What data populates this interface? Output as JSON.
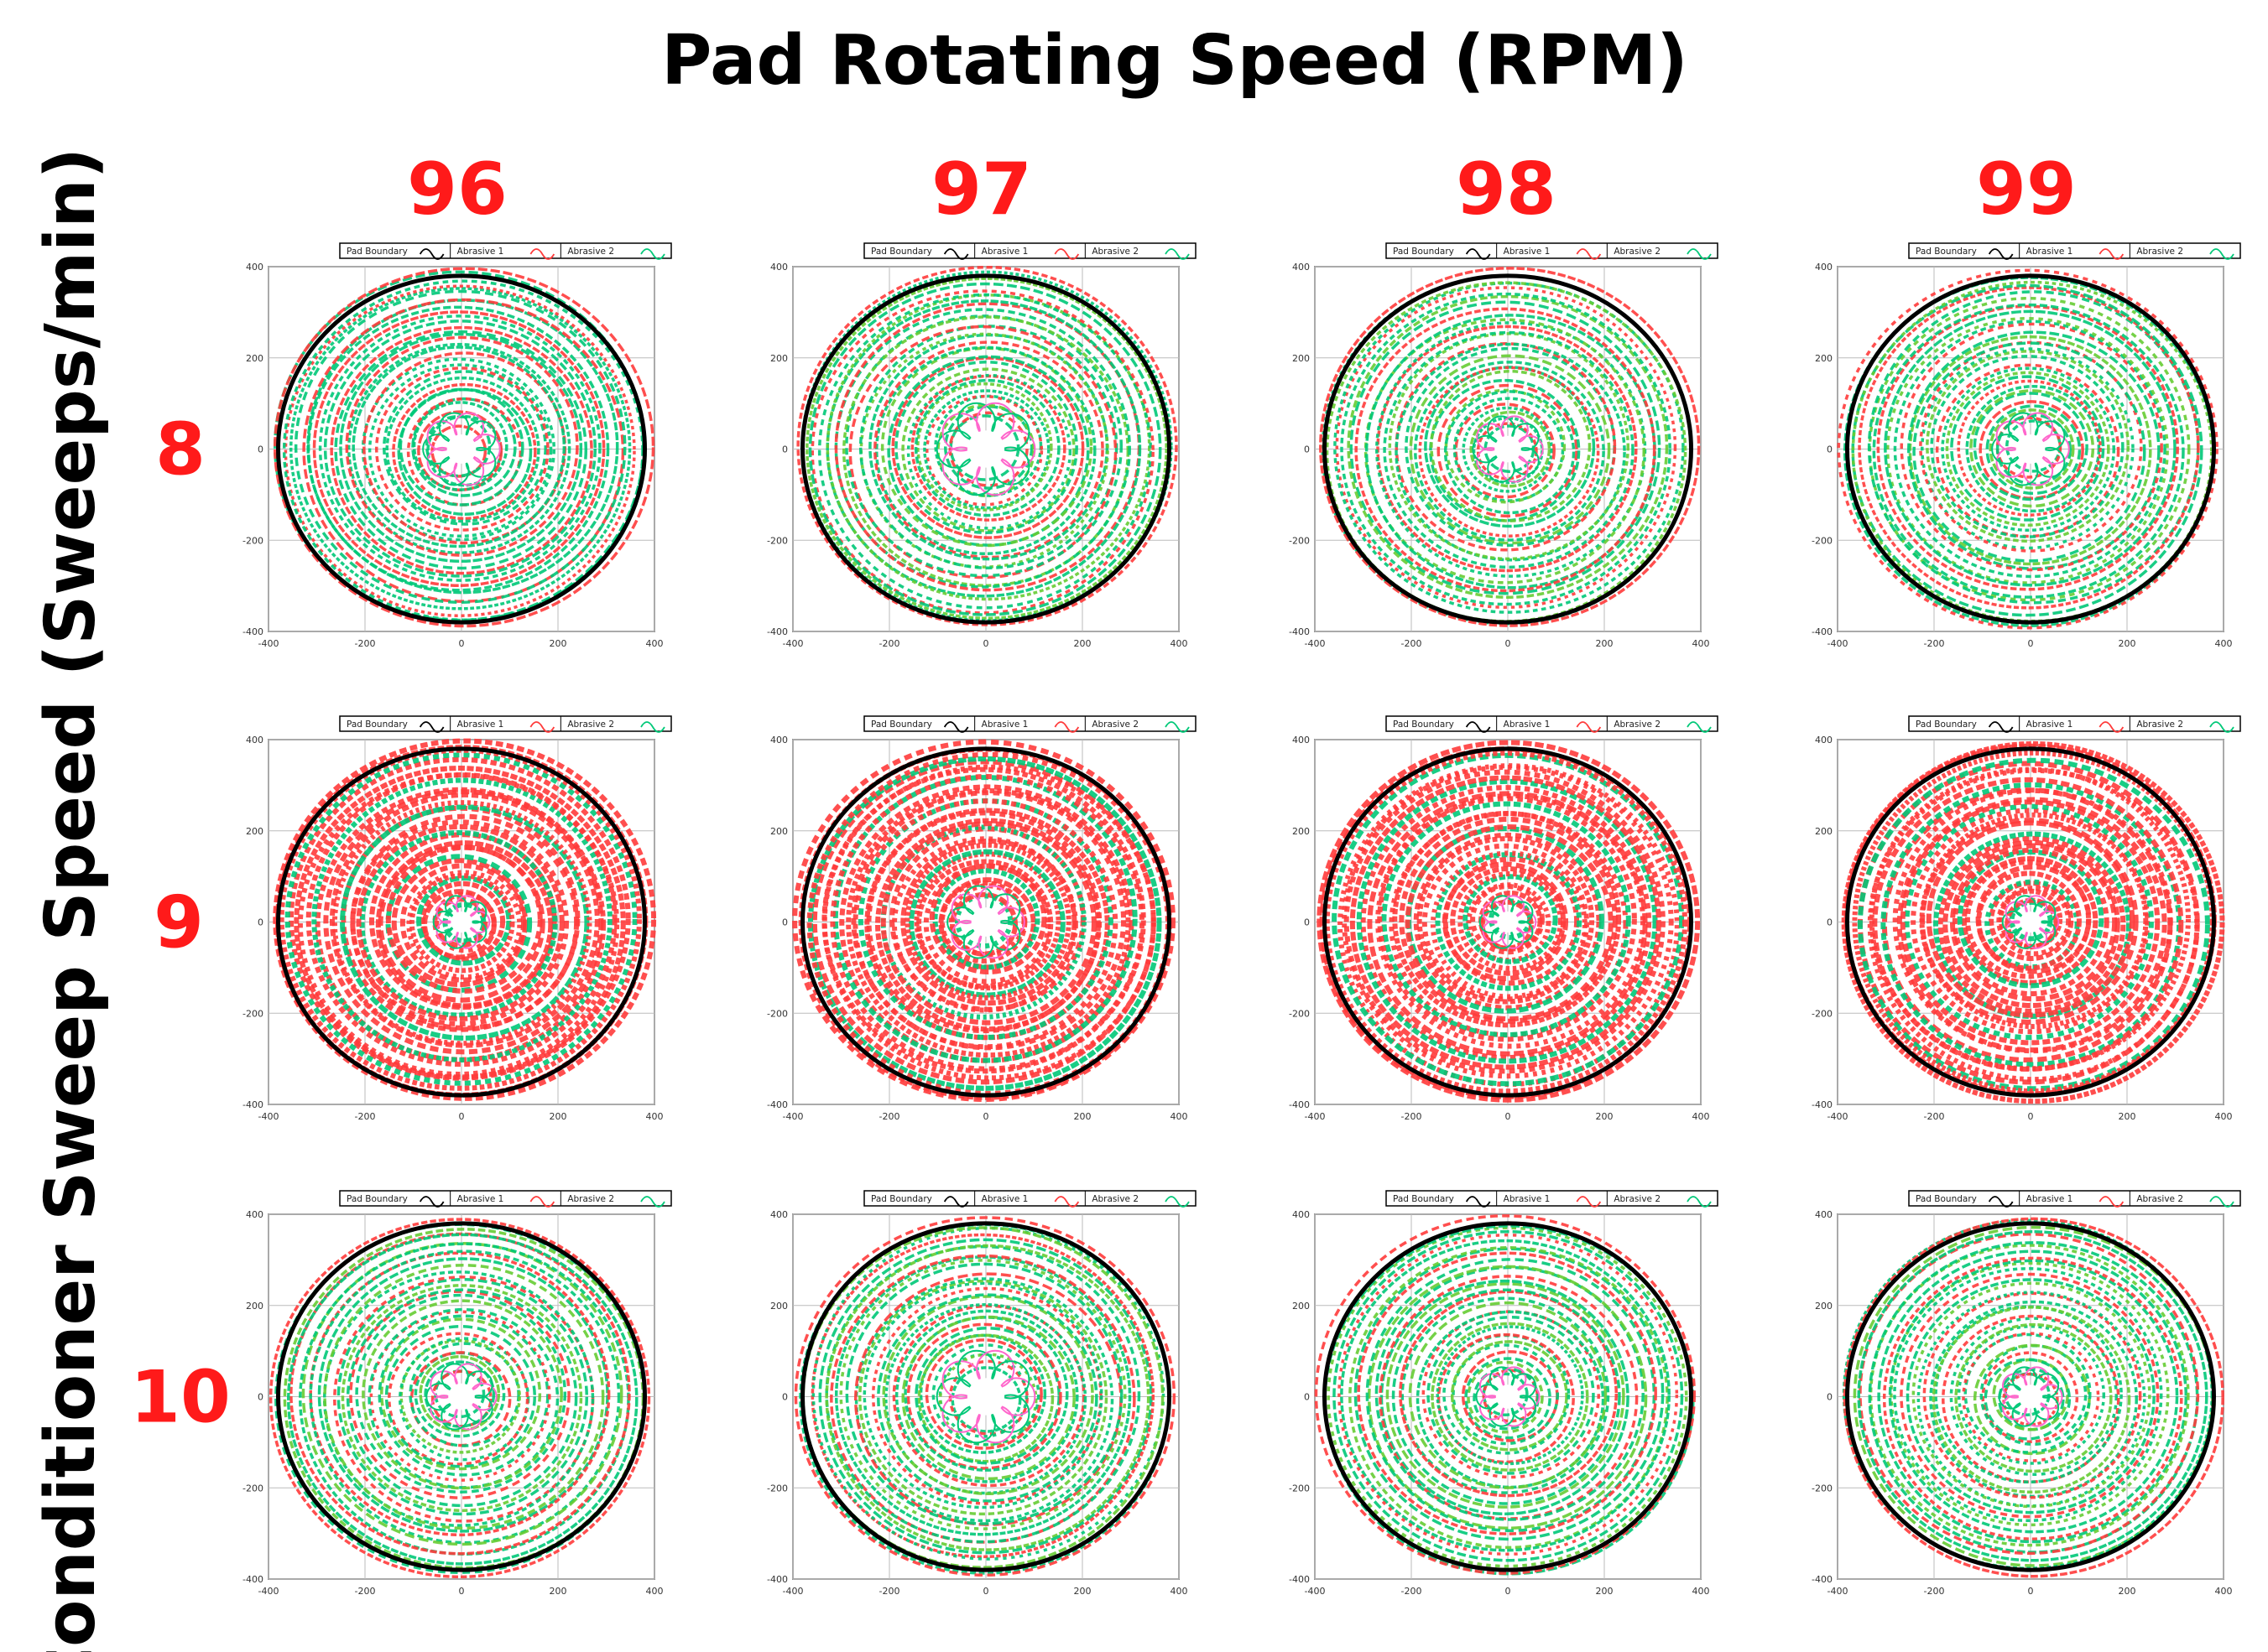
{
  "figure": {
    "title": "Pad Rotating Speed (RPM)",
    "row_axis_title": "Conditioner Sweep Speed (Sweeps/min)",
    "column_labels": [
      "96",
      "97",
      "98",
      "99"
    ],
    "row_labels": [
      "8",
      "9",
      "10"
    ],
    "label_color": "#ff1a1a"
  },
  "chart_data": {
    "type": "scatter",
    "description_of_grid": "3 rows (sweep speed) x 4 columns (pad RPM) of trajectory plots",
    "xlim": [
      -400,
      400
    ],
    "ylim": [
      -400,
      400
    ],
    "x_ticks": [
      "-400",
      "-200",
      "0",
      "200",
      "400"
    ],
    "y_ticks": [
      "400",
      "200",
      "0",
      "-200",
      "-400"
    ],
    "legend": [
      "Pad Boundary",
      "Abrasive 1",
      "Abrasive 2"
    ],
    "pad_boundary_radius": 380,
    "series_colors": {
      "Pad Boundary": "#000000",
      "Abrasive 1": "#ff3b3b",
      "Abrasive 2": "#00c878"
    },
    "panels": [
      {
        "row": "8",
        "col": "96",
        "hole_radius": 55,
        "dominant": "green"
      },
      {
        "row": "8",
        "col": "97",
        "hole_radius": 70,
        "dominant": "mixed"
      },
      {
        "row": "8",
        "col": "98",
        "hole_radius": 50,
        "dominant": "mixed"
      },
      {
        "row": "8",
        "col": "99",
        "hole_radius": 55,
        "dominant": "mixed"
      },
      {
        "row": "9",
        "col": "96",
        "hole_radius": 40,
        "dominant": "red"
      },
      {
        "row": "9",
        "col": "97",
        "hole_radius": 55,
        "dominant": "red"
      },
      {
        "row": "9",
        "col": "98",
        "hole_radius": 40,
        "dominant": "red"
      },
      {
        "row": "9",
        "col": "99",
        "hole_radius": 40,
        "dominant": "red"
      },
      {
        "row": "10",
        "col": "96",
        "hole_radius": 50,
        "dominant": "mixed"
      },
      {
        "row": "10",
        "col": "97",
        "hole_radius": 70,
        "dominant": "mixed"
      },
      {
        "row": "10",
        "col": "98",
        "hole_radius": 45,
        "dominant": "mixed"
      },
      {
        "row": "10",
        "col": "99",
        "hole_radius": 45,
        "dominant": "mixed"
      }
    ]
  }
}
